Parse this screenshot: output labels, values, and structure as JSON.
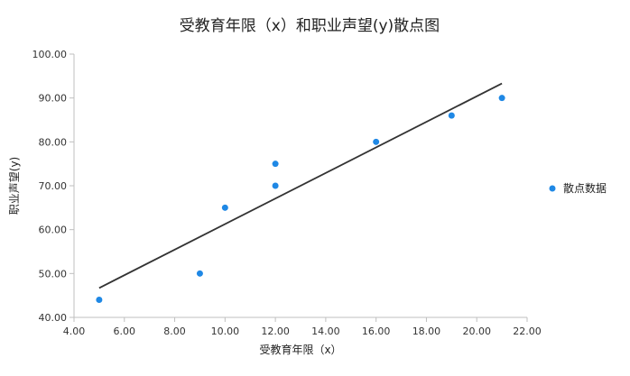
{
  "chart_data": {
    "type": "scatter",
    "title": "受教育年限（x）和职业声望(y)散点图",
    "xlabel": "受教育年限（x）",
    "ylabel": "职业声望(y)",
    "xlim": [
      4,
      22
    ],
    "ylim": [
      40,
      100
    ],
    "xticks": [
      4,
      6,
      8,
      10,
      12,
      14,
      16,
      18,
      20,
      22
    ],
    "yticks": [
      40,
      50,
      60,
      70,
      80,
      90,
      100
    ],
    "xtick_labels": [
      "4.00",
      "6.00",
      "8.00",
      "10.00",
      "12.00",
      "14.00",
      "16.00",
      "18.00",
      "20.00",
      "22.00"
    ],
    "ytick_labels": [
      "40.00",
      "50.00",
      "60.00",
      "70.00",
      "80.00",
      "90.00",
      "100.00"
    ],
    "grid": false,
    "legend_position": "right",
    "series": [
      {
        "name": "散点数据",
        "color": "#1f88e5",
        "x": [
          5,
          9,
          10,
          12,
          12,
          16,
          19,
          21
        ],
        "y": [
          44,
          50,
          65,
          70,
          75,
          80,
          86,
          90
        ]
      }
    ],
    "trendline": {
      "type": "linear",
      "color": "#333333",
      "x": [
        5,
        21
      ],
      "y": [
        46.7,
        93.3
      ]
    }
  }
}
